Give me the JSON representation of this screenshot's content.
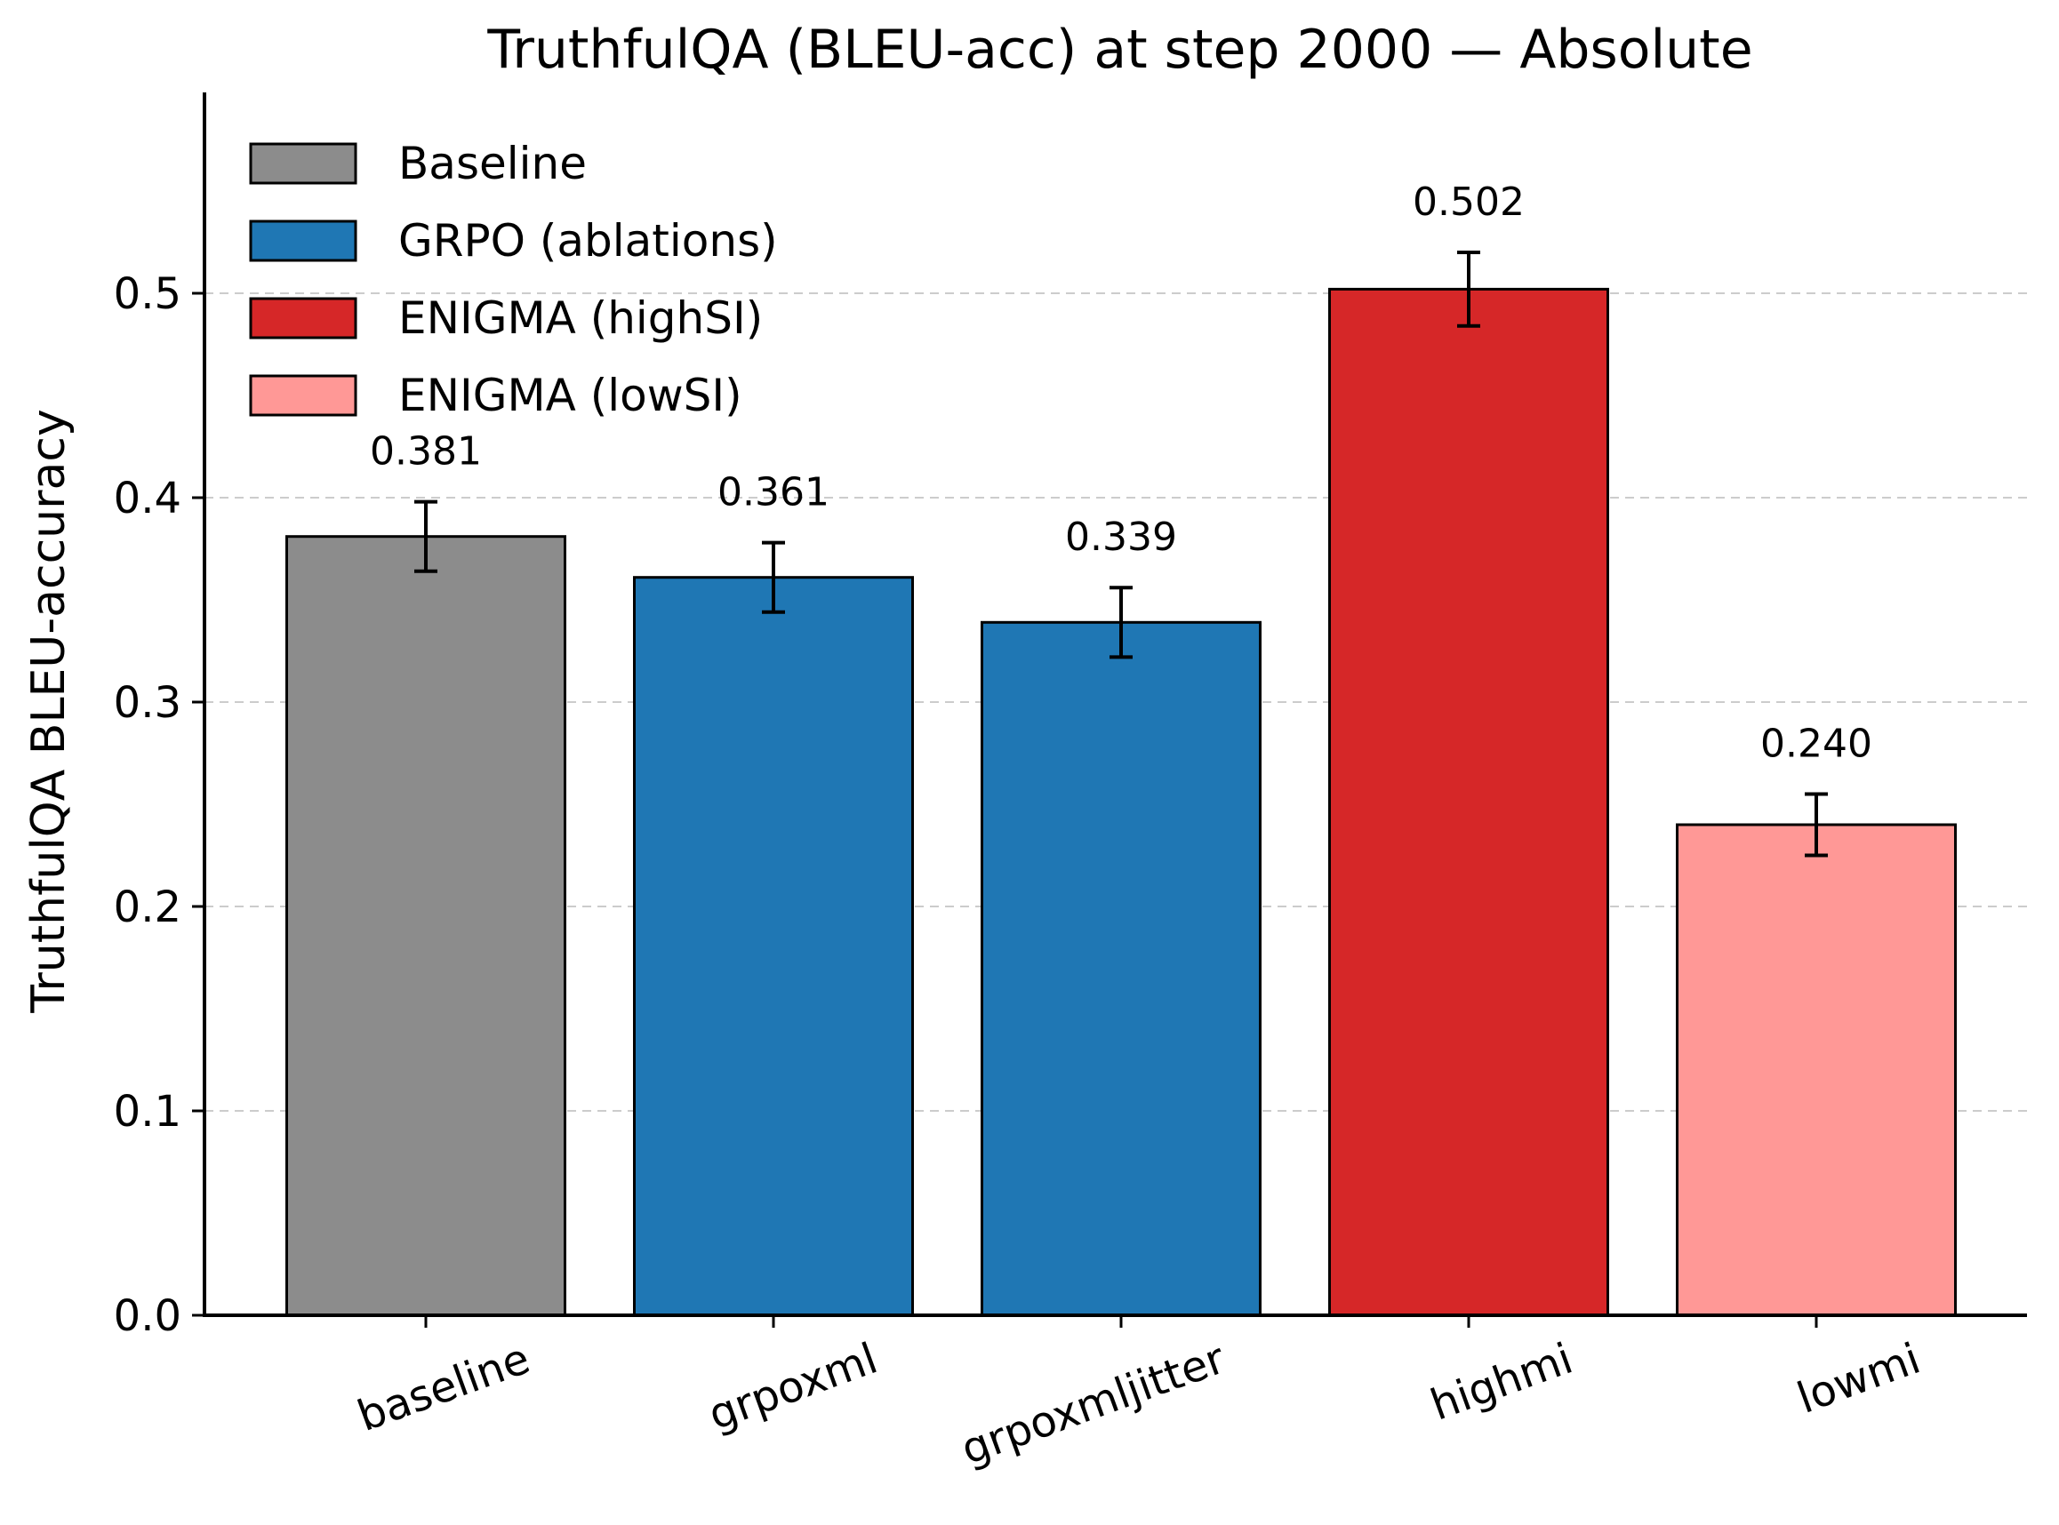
{
  "chart_data": {
    "type": "bar",
    "title": "TruthfulQA (BLEU-acc) at step 2000 — Absolute",
    "xlabel": "",
    "ylabel": "TruthfulQA BLEU-accuracy",
    "ylim": [
      0,
      0.6
    ],
    "yticks": [
      "0.0",
      "0.1",
      "0.2",
      "0.3",
      "0.4",
      "0.5"
    ],
    "grid": "horizontal dashed",
    "legend_position": "top-left",
    "categories": [
      "baseline",
      "grpoxml",
      "grpoxmljitter",
      "highmi",
      "lowmi"
    ],
    "values": [
      0.381,
      0.361,
      0.339,
      0.502,
      0.24
    ],
    "errors": [
      0.017,
      0.017,
      0.017,
      0.018,
      0.015
    ],
    "value_labels": [
      "0.381",
      "0.361",
      "0.339",
      "0.502",
      "0.240"
    ],
    "bar_groups": [
      "Baseline",
      "GRPO (ablations)",
      "GRPO (ablations)",
      "ENIGMA (highSI)",
      "ENIGMA (lowSI)"
    ],
    "legend": [
      {
        "name": "Baseline",
        "color": "#8c8c8c"
      },
      {
        "name": "GRPO (ablations)",
        "color": "#1f77b4"
      },
      {
        "name": "ENIGMA (highSI)",
        "color": "#d62728"
      },
      {
        "name": "ENIGMA (lowSI)",
        "color": "#ff9896"
      }
    ]
  }
}
